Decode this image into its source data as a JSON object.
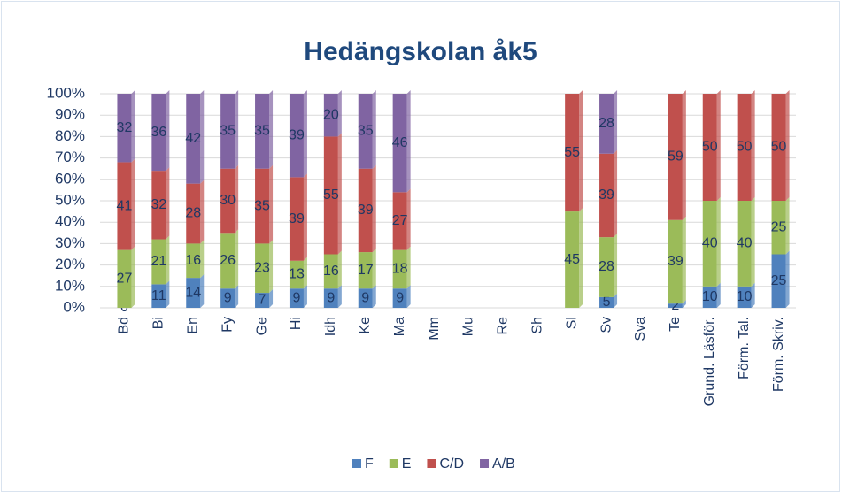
{
  "chart_data": {
    "type": "stacked_bar",
    "title": "Hedängskolan åk5",
    "categories": [
      "Bd",
      "Bi",
      "En",
      "Fy",
      "Ge",
      "Hi",
      "Idh",
      "Ke",
      "Ma",
      "Mm",
      "Mu",
      "Re",
      "Sh",
      "Sl",
      "Sv",
      "Sva",
      "Te",
      "Grund. Läsför.",
      "Förm. Tal.",
      "Förm. Skriv."
    ],
    "series": [
      {
        "name": "F",
        "color": "#4f81bd",
        "values": [
          0,
          11,
          14,
          9,
          7,
          9,
          9,
          9,
          9,
          null,
          null,
          null,
          null,
          null,
          5,
          null,
          2,
          10,
          10,
          25
        ]
      },
      {
        "name": "E",
        "color": "#9bbb59",
        "values": [
          27,
          21,
          16,
          26,
          23,
          13,
          16,
          17,
          18,
          null,
          null,
          null,
          null,
          45,
          28,
          null,
          39,
          40,
          40,
          25
        ]
      },
      {
        "name": "C/D",
        "color": "#c0504d",
        "values": [
          41,
          32,
          28,
          30,
          35,
          39,
          55,
          39,
          27,
          null,
          null,
          null,
          null,
          55,
          39,
          null,
          59,
          50,
          50,
          50
        ]
      },
      {
        "name": "A/B",
        "color": "#8064a2",
        "values": [
          32,
          36,
          42,
          35,
          35,
          39,
          20,
          35,
          46,
          null,
          null,
          null,
          null,
          null,
          28,
          null,
          null,
          null,
          null,
          null
        ]
      }
    ],
    "ylim": [
      0,
      100
    ],
    "yticks": [
      {
        "value": 0,
        "label": "0%"
      },
      {
        "value": 10,
        "label": "10%"
      },
      {
        "value": 20,
        "label": "20%"
      },
      {
        "value": 30,
        "label": "30%"
      },
      {
        "value": 40,
        "label": "40%"
      },
      {
        "value": 50,
        "label": "50%"
      },
      {
        "value": 60,
        "label": "60%"
      },
      {
        "value": 70,
        "label": "70%"
      },
      {
        "value": 80,
        "label": "80%"
      },
      {
        "value": 90,
        "label": "90%"
      },
      {
        "value": 100,
        "label": "100%"
      }
    ],
    "grid": true,
    "legend": "bottom"
  }
}
